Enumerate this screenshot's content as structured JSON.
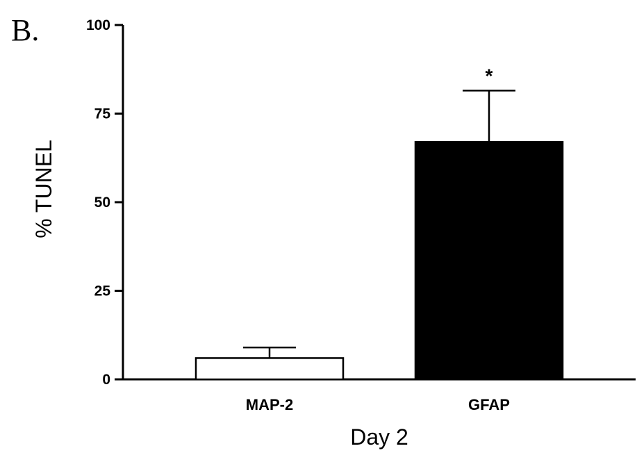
{
  "panel_label": "B.",
  "chart_data": {
    "type": "bar",
    "categories": [
      "MAP-2",
      "GFAP"
    ],
    "values": [
      6,
      67
    ],
    "errors": [
      3,
      14.5
    ],
    "bar_fill": [
      "#ffffff",
      "#000000"
    ],
    "title": "",
    "xlabel": "Day 2",
    "ylabel": "% TUNEL",
    "ylim": [
      0,
      100
    ],
    "yticks": [
      0,
      25,
      50,
      75,
      100
    ],
    "yticklabels": [
      "0",
      "25",
      "50",
      "75",
      "100"
    ],
    "annotations": [
      {
        "category": "GFAP",
        "text": "*"
      }
    ],
    "grid": false,
    "legend": "none"
  }
}
